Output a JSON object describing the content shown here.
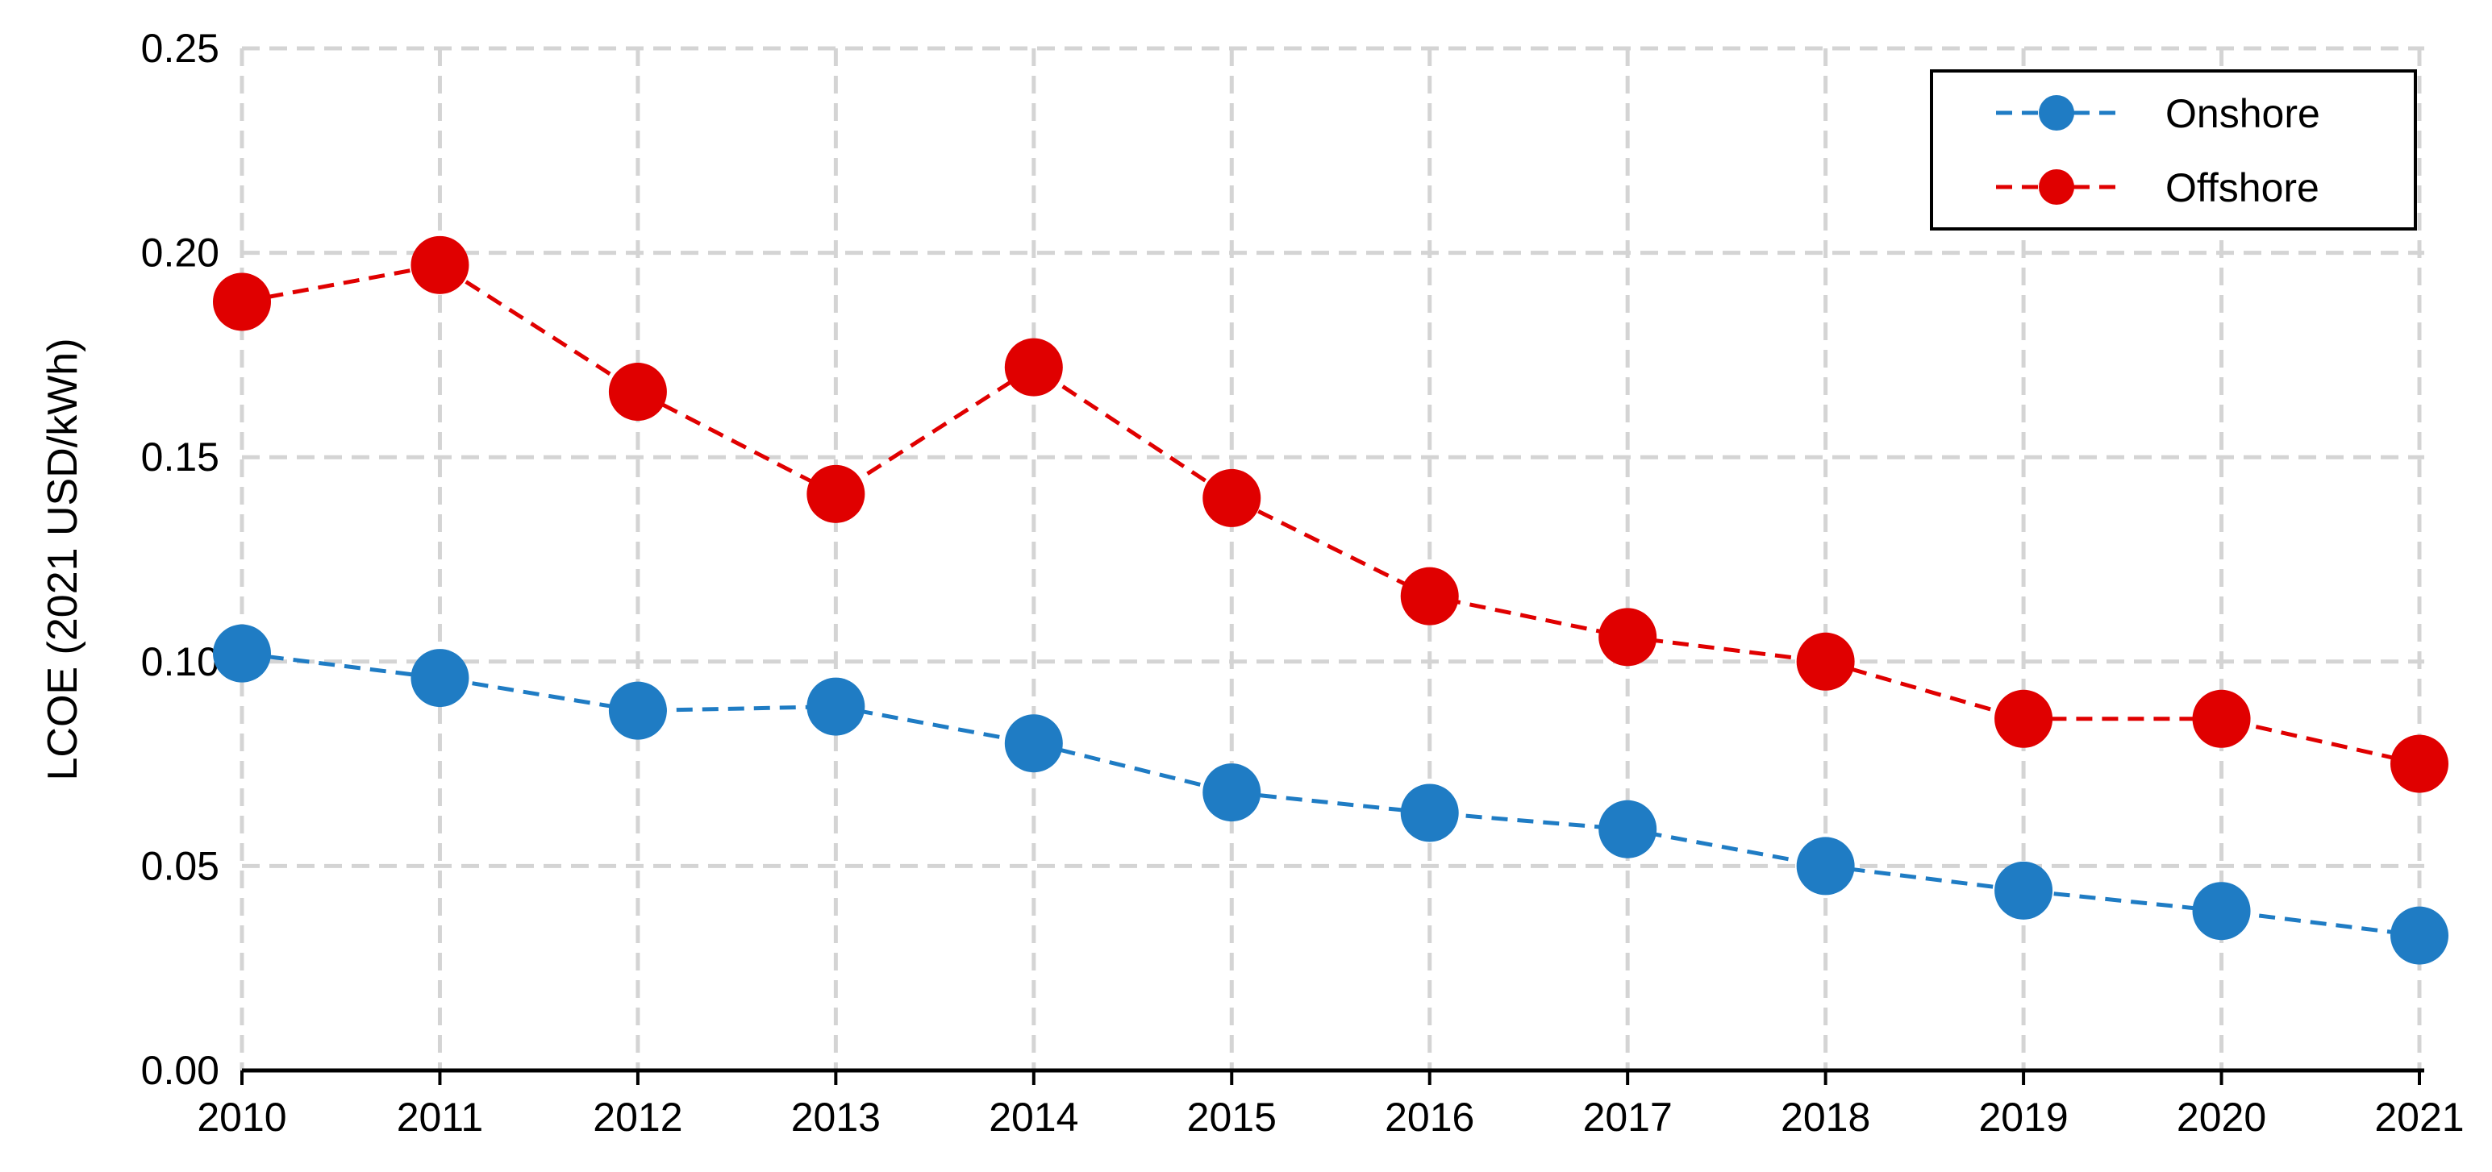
{
  "chart_data": {
    "type": "line",
    "title": "",
    "xlabel": "",
    "ylabel": "LCOE (2021 USD/kWh)",
    "x": [
      2010,
      2011,
      2012,
      2013,
      2014,
      2015,
      2016,
      2017,
      2018,
      2019,
      2020,
      2021
    ],
    "ylim": [
      0,
      0.25
    ],
    "yticks": [
      "0.00",
      "0.05",
      "0.10",
      "0.15",
      "0.20",
      "0.25"
    ],
    "grid": true,
    "legend_position": "top-right",
    "series": [
      {
        "name": "Onshore",
        "color": "#1f7cc4",
        "values": [
          0.102,
          0.096,
          0.088,
          0.089,
          0.08,
          0.068,
          0.063,
          0.059,
          0.05,
          0.044,
          0.039,
          0.033
        ]
      },
      {
        "name": "Offshore",
        "color": "#e00000",
        "values": [
          0.188,
          0.197,
          0.166,
          0.141,
          0.172,
          0.14,
          0.116,
          0.106,
          0.1,
          0.086,
          0.086,
          0.075
        ]
      }
    ]
  }
}
